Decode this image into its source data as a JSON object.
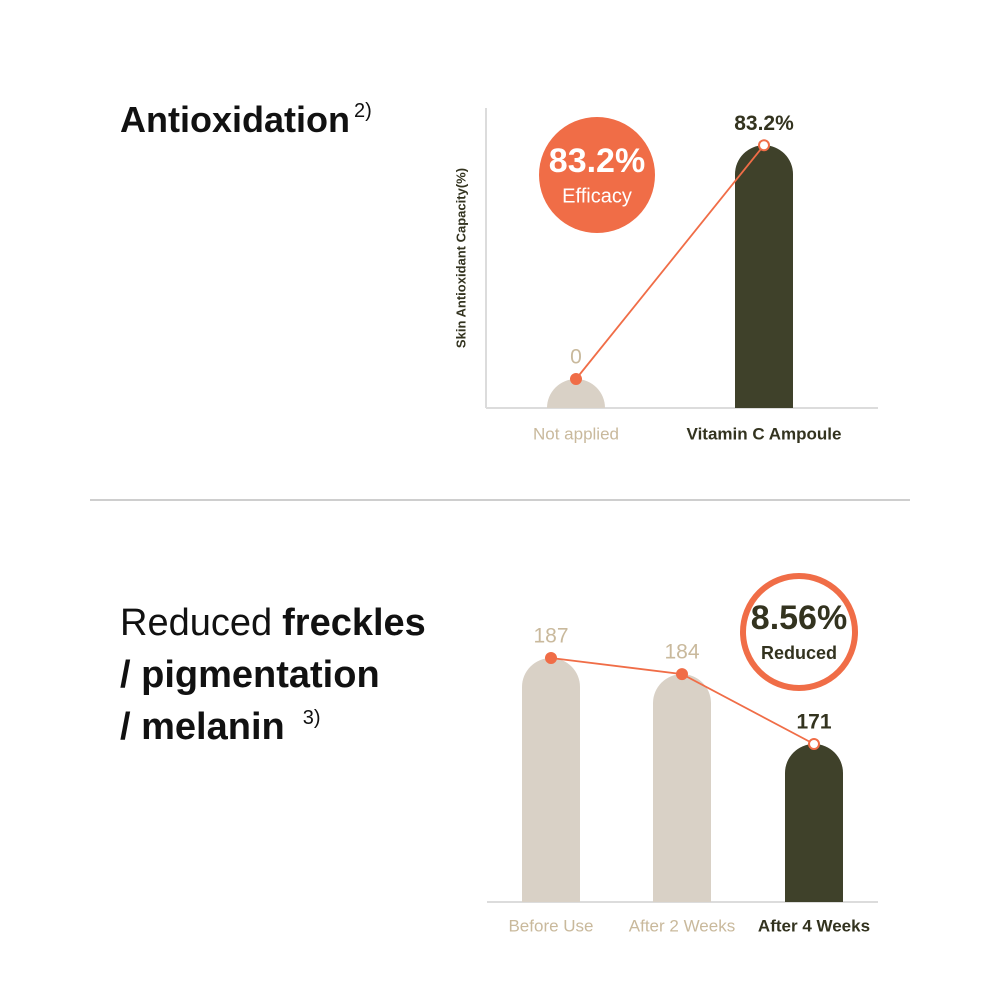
{
  "chart_data": [
    {
      "type": "bar",
      "title_lines": [
        [
          {
            "text": "Antioxidation",
            "bold": true
          }
        ]
      ],
      "title_note": "2)",
      "y_label": "Skin Antioxidant Capacity(%)",
      "categories": [
        "Not applied",
        "Vitamin C Ampoule"
      ],
      "values": [
        0,
        83.2
      ],
      "value_labels": [
        "0",
        "83.2%"
      ],
      "ylim": [
        0,
        105
      ],
      "colors": [
        "#d9d1c6",
        "#3f412a"
      ],
      "label_colors": [
        "#c9b99c",
        "#33331f"
      ],
      "label_bold": [
        false,
        true
      ],
      "marker_fills": [
        "#f06d47",
        "#ffffff"
      ],
      "line_color": "#f06d47",
      "badge": {
        "value": 83.2,
        "value_label": "83.2%",
        "text": "Efficacy",
        "style": "filled"
      }
    },
    {
      "type": "bar",
      "title_lines": [
        [
          {
            "text": "Reduced",
            "bold": false
          },
          {
            "text": "freckles",
            "bold": true
          }
        ],
        [
          {
            "text": "/ pigmentation",
            "bold": true
          }
        ],
        [
          {
            "text": "/ melanin",
            "bold": true
          }
        ]
      ],
      "title_note": "3)",
      "categories": [
        "Before Use",
        "After 2 Weeks",
        "After 4 Weeks"
      ],
      "values": [
        187,
        184,
        171
      ],
      "ylim": [
        147,
        195
      ],
      "colors": [
        "#d9d1c6",
        "#d9d1c6",
        "#3f412a"
      ],
      "label_colors": [
        "#c9b99c",
        "#c9b99c",
        "#33331f"
      ],
      "label_bold": [
        false,
        false,
        true
      ],
      "marker_fills": [
        "#f06d47",
        "#f06d47",
        "#ffffff"
      ],
      "line_color": "#f06d47",
      "badge": {
        "value": 8.56,
        "value_label": "8.56%",
        "text": "Reduced",
        "style": "outline"
      }
    }
  ]
}
